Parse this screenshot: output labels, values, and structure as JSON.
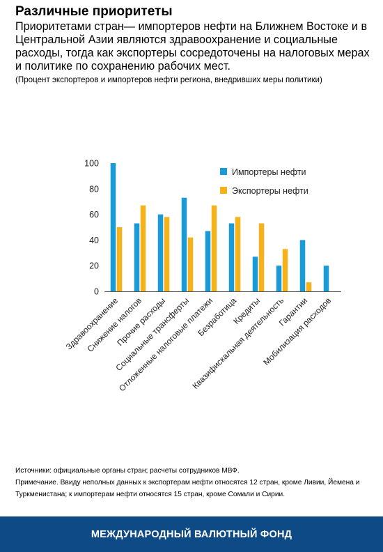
{
  "header": {
    "title": "Различные приоритеты",
    "subtitle": "Приоритетами стран— импортеров нефти на Ближнем Востоке и в Центральной Азии являются здравоохранение и социальные расходы, тогда как экспортеры сосредоточены на налоговых мерах и политике по сохранению рабочих мест.",
    "note": "(Процент экспортеров и импортеров нефти региона, внедривших меры политики)"
  },
  "chart_data": {
    "type": "bar",
    "categories": [
      "Здравоохранение",
      "Снижение налогов",
      "Прочие расходы",
      "Социальные трансферты",
      "Отложенные налоговые платежи",
      "Безработица",
      "Кредиты",
      "Квазифискальная деятельность",
      "Гарантии",
      "Мобилизация расходов"
    ],
    "series": [
      {
        "name": "Импортеры нефти",
        "color": "#1a9ad6",
        "values": [
          100,
          53,
          60,
          73,
          47,
          53,
          27,
          20,
          40,
          20
        ]
      },
      {
        "name": "Экспортеры нефти",
        "color": "#f5b21a",
        "values": [
          50,
          67,
          58,
          42,
          67,
          58,
          53,
          33,
          7,
          0
        ]
      }
    ],
    "yticks": [
      0,
      20,
      40,
      60,
      80,
      100
    ],
    "ylim": [
      0,
      100
    ],
    "legend_position": "top-right",
    "grid": false
  },
  "footer": {
    "sources": "Источники: официальные органы стран; расчеты сотрудников МВФ.",
    "note": "Примечание. Ввиду неполных данных к экспортерам нефти относятся 12 стран, кроме Ливии, Йемена и Туркменистана; к импортерам нефти относятся 15 стран, кроме Сомали и Сирии.",
    "org": "МЕЖДУНАРОДНЫЙ ВАЛЮТНЫЙ ФОНД"
  }
}
